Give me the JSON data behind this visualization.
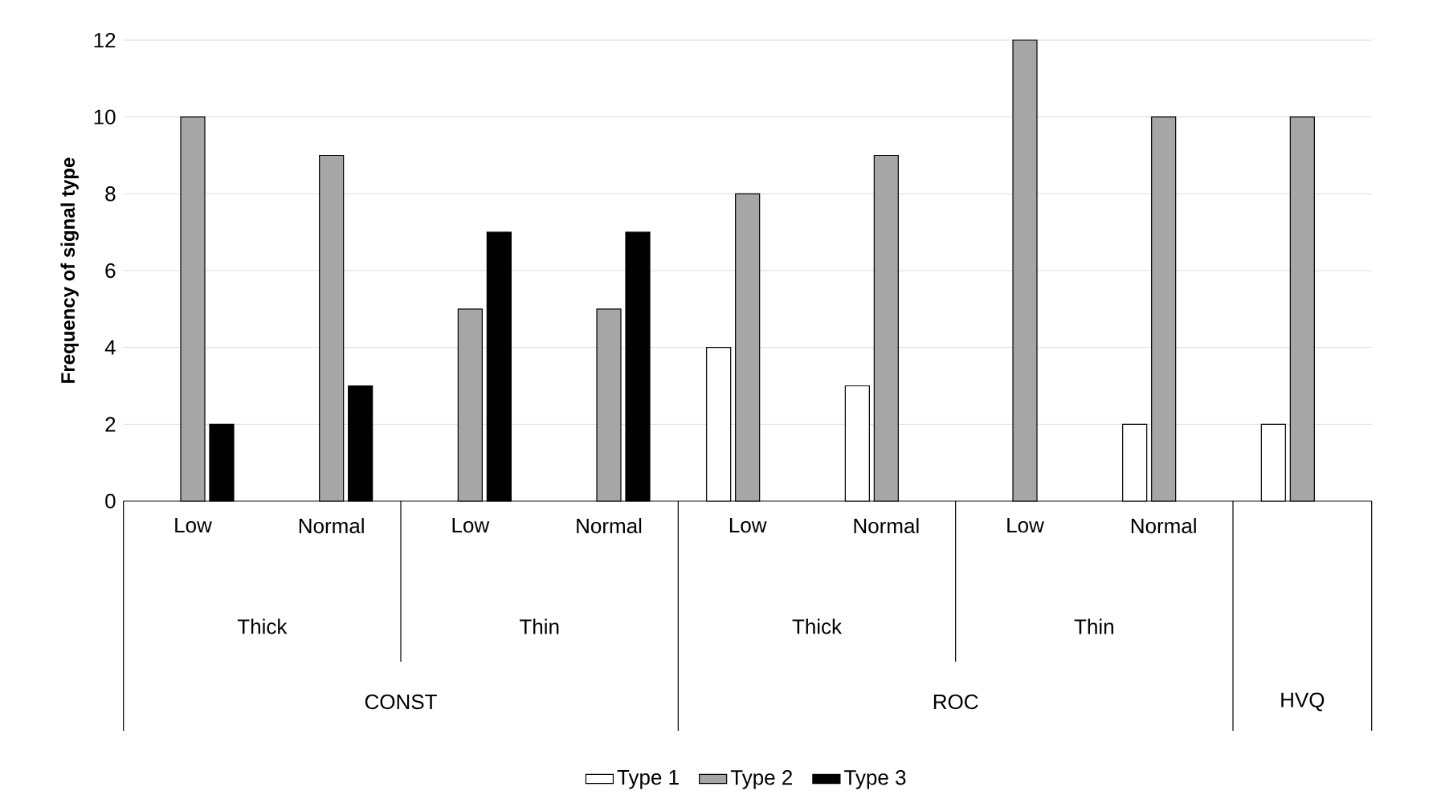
{
  "chart_data": {
    "type": "bar",
    "ylabel": "Frequency of signal type",
    "categories": [
      "Low",
      "Normal",
      "Low",
      "Normal",
      "Low",
      "Normal",
      "Low",
      "Normal",
      null
    ],
    "series": [
      {
        "name": "Type 1",
        "color": "#ffffff",
        "values": [
          null,
          null,
          null,
          null,
          4,
          3,
          null,
          2,
          2
        ]
      },
      {
        "name": "Type 2",
        "color": "#a6a6a6",
        "values": [
          10,
          9,
          5,
          5,
          8,
          9,
          12,
          10,
          10
        ]
      },
      {
        "name": "Type 3",
        "color": "#000000",
        "values": [
          2,
          3,
          7,
          7,
          null,
          null,
          null,
          null,
          null
        ]
      }
    ],
    "annotations": [
      "Thick",
      "Thin",
      "Thick",
      "Thin",
      "CONST",
      "ROC",
      "HVQ"
    ],
    "ylim": [
      0,
      12
    ],
    "yticks": [
      0,
      2,
      4,
      6,
      8,
      10,
      12
    ],
    "grid": "y",
    "legend": "bottom"
  }
}
